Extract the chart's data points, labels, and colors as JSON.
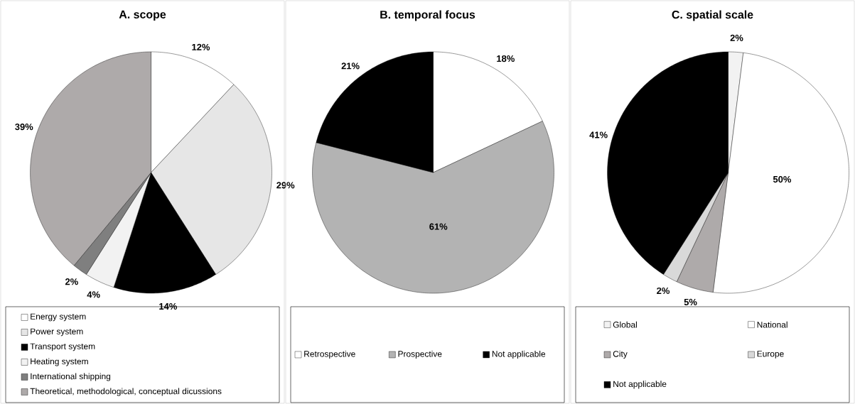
{
  "chart_data": [
    {
      "type": "pie",
      "title": "A. scope",
      "categories": [
        "Energy system",
        "Power system",
        "Transport system",
        "Heating system",
        "International shipping",
        "Theoretical, methodological, conceptual dicussions"
      ],
      "values": [
        12,
        29,
        14,
        4,
        2,
        39
      ],
      "value_labels": [
        "12%",
        "29%",
        "14%",
        "4%",
        "2%",
        "39%"
      ],
      "colors": [
        "#ffffff",
        "#e6e6e6",
        "#000000",
        "#f2f2f2",
        "#7f7f7f",
        "#aeaaaa"
      ],
      "legend": "bottom"
    },
    {
      "type": "pie",
      "title": "B. temporal focus",
      "categories": [
        "Retrospective",
        "Prospective",
        "Not applicable"
      ],
      "values": [
        18,
        61,
        21
      ],
      "value_labels": [
        "18%",
        "61%",
        "21%"
      ],
      "colors": [
        "#ffffff",
        "#b3b3b3",
        "#000000"
      ],
      "legend": "bottom"
    },
    {
      "type": "pie",
      "title": "C. spatial scale",
      "categories": [
        "Global",
        "National",
        "City",
        "Europe",
        "Not applicable"
      ],
      "values": [
        2,
        50,
        5,
        2,
        41
      ],
      "value_labels": [
        "2%",
        "50%",
        "5%",
        "2%",
        "41%"
      ],
      "colors": [
        "#f2f2f2",
        "#ffffff",
        "#aeaaaa",
        "#d9d9d9",
        "#000000"
      ],
      "legend": "bottom"
    }
  ]
}
